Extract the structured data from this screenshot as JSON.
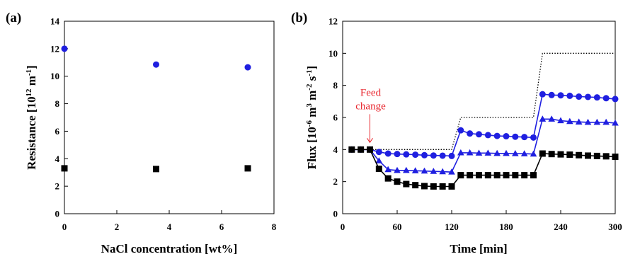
{
  "chart_data": [
    {
      "type": "scatter",
      "panel_label": "(a)",
      "xlabel": "NaCl concentration [wt%]",
      "ylabel_main": "Resistance [10",
      "ylabel_sup1": "12",
      "ylabel_mid": " m",
      "ylabel_sup2": "-1",
      "ylabel_end": "]",
      "xlim": [
        0,
        8
      ],
      "ylim": [
        0,
        14
      ],
      "xticks": [
        0,
        2,
        4,
        6,
        8
      ],
      "yticks": [
        0,
        2,
        4,
        6,
        8,
        10,
        12,
        14
      ],
      "grid": false,
      "series": [
        {
          "marker": "circle",
          "color": "#1f1fe0",
          "x": [
            0,
            3.5,
            7
          ],
          "y": [
            12.0,
            10.85,
            10.65
          ]
        },
        {
          "marker": "square",
          "color": "#000000",
          "x": [
            0,
            3.5,
            7
          ],
          "y": [
            3.3,
            3.25,
            3.3
          ]
        }
      ]
    },
    {
      "type": "line",
      "panel_label": "(b)",
      "xlabel": "Time [min]",
      "ylabel_main": "Flux [10",
      "ylabel_sup1": "-6",
      "ylabel_mid": " m",
      "ylabel_sup2": "3",
      "ylabel_mid2": " m",
      "ylabel_sup3": "-2",
      "ylabel_mid3": " s",
      "ylabel_sup4": "-1",
      "ylabel_end": "]",
      "xlim": [
        0,
        300
      ],
      "ylim": [
        0,
        12
      ],
      "xticks": [
        0,
        60,
        120,
        180,
        240,
        300
      ],
      "yticks": [
        0,
        2,
        4,
        6,
        8,
        10,
        12
      ],
      "grid": false,
      "annotation": {
        "line1": "Feed",
        "line2": "change",
        "color": "#e8272f",
        "x": 30,
        "y": 4
      },
      "series": [
        {
          "style": "dotted",
          "color": "#000000",
          "x": [
            10,
            120,
            130,
            210,
            220,
            300
          ],
          "y": [
            4,
            4,
            6,
            6,
            10,
            10
          ]
        },
        {
          "marker": "circle",
          "color": "#1f1fe0",
          "x": [
            10,
            20,
            30,
            40,
            50,
            60,
            70,
            80,
            90,
            100,
            110,
            120,
            130,
            140,
            150,
            160,
            170,
            180,
            190,
            200,
            210,
            220,
            230,
            240,
            250,
            260,
            270,
            280,
            290,
            300
          ],
          "y": [
            4.0,
            4.0,
            4.0,
            3.85,
            3.75,
            3.72,
            3.7,
            3.68,
            3.65,
            3.63,
            3.62,
            3.6,
            5.2,
            5.0,
            4.95,
            4.9,
            4.85,
            4.83,
            4.8,
            4.78,
            4.75,
            7.45,
            7.4,
            7.38,
            7.35,
            7.3,
            7.28,
            7.25,
            7.2,
            7.15
          ]
        },
        {
          "marker": "triangle",
          "color": "#1f1fe0",
          "x": [
            10,
            20,
            30,
            40,
            50,
            60,
            70,
            80,
            90,
            100,
            110,
            120,
            130,
            140,
            150,
            160,
            170,
            180,
            190,
            200,
            210,
            220,
            230,
            240,
            250,
            260,
            270,
            280,
            290,
            300
          ],
          "y": [
            4.0,
            4.0,
            4.0,
            3.3,
            2.75,
            2.7,
            2.7,
            2.68,
            2.66,
            2.64,
            2.62,
            2.6,
            3.8,
            3.8,
            3.78,
            3.78,
            3.76,
            3.76,
            3.75,
            3.74,
            3.72,
            5.9,
            5.9,
            5.8,
            5.75,
            5.72,
            5.7,
            5.7,
            5.7,
            5.65
          ]
        },
        {
          "marker": "square",
          "color": "#000000",
          "x": [
            10,
            20,
            30,
            40,
            50,
            60,
            70,
            80,
            90,
            100,
            110,
            120,
            130,
            140,
            150,
            160,
            170,
            180,
            190,
            200,
            210,
            220,
            230,
            240,
            250,
            260,
            270,
            280,
            290,
            300
          ],
          "y": [
            4.0,
            4.0,
            4.0,
            2.8,
            2.2,
            2.0,
            1.85,
            1.78,
            1.72,
            1.7,
            1.7,
            1.7,
            2.4,
            2.4,
            2.4,
            2.4,
            2.4,
            2.4,
            2.4,
            2.4,
            2.4,
            3.75,
            3.72,
            3.7,
            3.68,
            3.65,
            3.62,
            3.6,
            3.58,
            3.55
          ]
        }
      ]
    }
  ]
}
